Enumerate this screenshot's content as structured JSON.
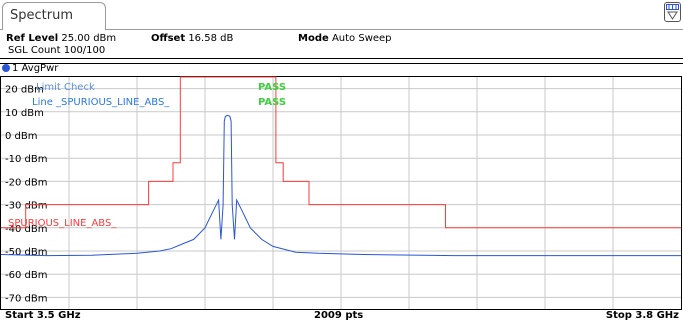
{
  "window": {
    "tab_title": "Spectrum",
    "corner_icon": "display-config-icon"
  },
  "settings": {
    "ref_level_label": "Ref Level",
    "ref_level_value": "25.00 dBm",
    "offset_label": "Offset",
    "offset_value": "16.58 dB",
    "mode_label": "Mode",
    "mode_value": "Auto Sweep",
    "sgl_count": "SGL Count 100/100"
  },
  "trace": {
    "label": "1 AvgPwr",
    "color": "#2a56d6"
  },
  "limit_check": {
    "title": "Limit Check",
    "title_result": "PASS",
    "line_label": "Line _SPURIOUS_LINE_ABS_",
    "line_result": "PASS",
    "title_color": "#5b8fe0",
    "line_color": "#2a78e0",
    "pass_color": "#3fcf3f"
  },
  "limit_line": {
    "name": "SPURIOUS_LINE_ABS_",
    "color": "#ff3a3a"
  },
  "chart_data": {
    "type": "line",
    "x_unit": "GHz",
    "y_unit": "dBm",
    "xlim": [
      3.5,
      3.8
    ],
    "ylim": [
      -75,
      25
    ],
    "y_ticks": [
      20,
      10,
      0,
      -10,
      -20,
      -30,
      -40,
      -50,
      -60,
      -70
    ],
    "y_tick_labels": [
      "20 dBm",
      "10 dBm",
      "0 dBm",
      "-10 dBm",
      "-20 dBm",
      "-30 dBm",
      "-40 dBm",
      "-50 dBm",
      "-60 dBm",
      "-70 dBm"
    ],
    "grid": true,
    "x_divisions": 10,
    "footer": {
      "start": "Start 3.5 GHz",
      "points": "2009 pts",
      "stop": "Stop 3.8 GHz"
    },
    "limit_line": {
      "name": "SPURIOUS_LINE_ABS_",
      "x": [
        3.5,
        3.5109,
        3.5109,
        3.5651,
        3.5651,
        3.5759,
        3.5759,
        3.5791,
        3.5791,
        3.6213,
        3.6213,
        3.6245,
        3.6245,
        3.6359,
        3.6359,
        3.6961,
        3.6961,
        3.8
      ],
      "y": [
        -40,
        -40,
        -30,
        -30,
        -20,
        -20,
        -12,
        -12,
        25,
        25,
        -12,
        -12,
        -20,
        -20,
        -30,
        -30,
        -40,
        -40
      ]
    },
    "trace": {
      "name": "1 AvgPwr",
      "x": [
        3.5,
        3.52,
        3.54,
        3.56,
        3.57,
        3.575,
        3.58,
        3.585,
        3.59,
        3.592,
        3.594,
        3.596,
        3.597,
        3.598,
        3.5985,
        3.599,
        3.6,
        3.601,
        3.6015,
        3.602,
        3.603,
        3.604,
        3.606,
        3.608,
        3.61,
        3.615,
        3.62,
        3.63,
        3.64,
        3.66,
        3.7,
        3.74,
        3.78,
        3.8
      ],
      "y": [
        -51.5,
        -52,
        -51.8,
        -51,
        -50,
        -49,
        -47,
        -45,
        -40,
        -36,
        -32,
        -28,
        -45,
        -30,
        6,
        8,
        8.5,
        8,
        6,
        -30,
        -45,
        -28,
        -32,
        -36,
        -40,
        -45,
        -48,
        -50.5,
        -51,
        -51.5,
        -52,
        -52,
        -52,
        -52
      ]
    }
  }
}
